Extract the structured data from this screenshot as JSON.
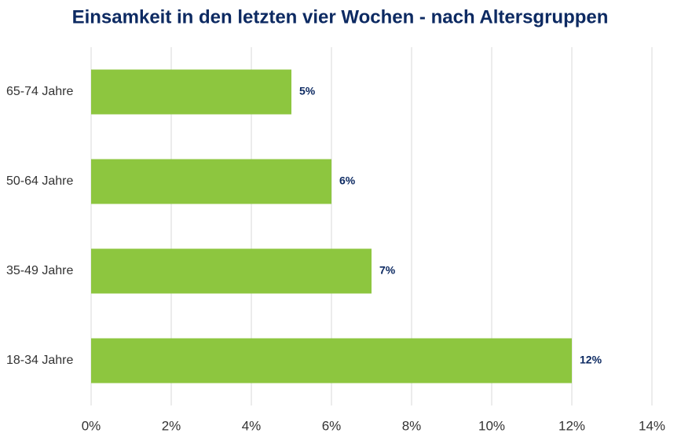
{
  "chart_data": {
    "type": "bar",
    "orientation": "horizontal",
    "title": "Einsamkeit in den letzten vier Wochen - nach Altersgruppen",
    "categories": [
      "65-74 Jahre",
      "50-64 Jahre",
      "35-49 Jahre",
      "18-34 Jahre"
    ],
    "values": [
      5,
      6,
      7,
      12
    ],
    "value_labels": [
      "5%",
      "6%",
      "7%",
      "12%"
    ],
    "color": "#8dc63f",
    "xlim": [
      0,
      14
    ],
    "xticks": [
      {
        "value": 0,
        "label": "0%"
      },
      {
        "value": 2,
        "label": "2%"
      },
      {
        "value": 4,
        "label": "4%"
      },
      {
        "value": 6,
        "label": "6%"
      },
      {
        "value": 8,
        "label": "8%"
      },
      {
        "value": 10,
        "label": "10%"
      },
      {
        "value": 12,
        "label": "12%"
      },
      {
        "value": 14,
        "label": "14%"
      }
    ],
    "grid": true
  }
}
